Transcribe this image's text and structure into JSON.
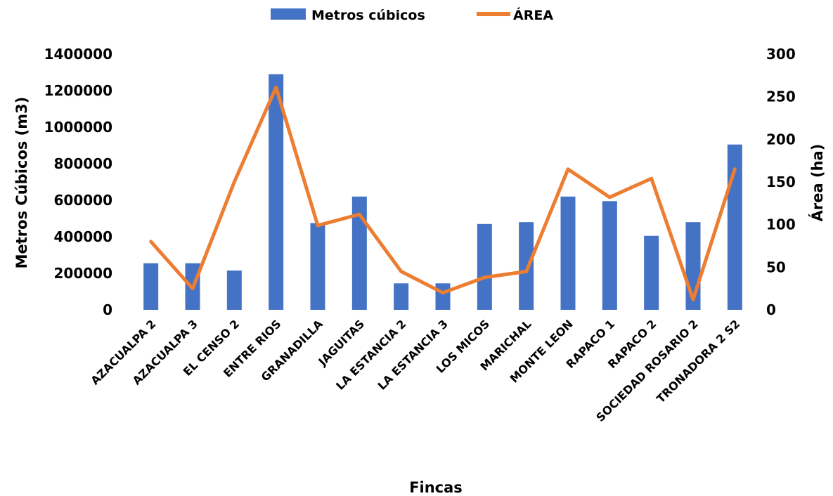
{
  "chart_data": {
    "type": "bar",
    "categories": [
      "AZACUALPA 2",
      "AZACUALPA 3",
      "EL CENSO 2",
      "ENTRE RIOS",
      "GRANADILLA",
      "JAGUITAS",
      "LA ESTANCIA 2",
      "LA ESTANCIA 3",
      "LOS MICOS",
      "MARICHAL",
      "MONTE LEON",
      "RAPACO 1",
      "RAPACO 2",
      "SOCIEDAD ROSARIO 2",
      "TRONADORA 2 S2"
    ],
    "series": [
      {
        "name": "Metros cúbicos",
        "type": "bar",
        "axis": "left",
        "color": "#4472C4",
        "values": [
          255000,
          255000,
          215000,
          1290000,
          475000,
          620000,
          145000,
          145000,
          470000,
          480000,
          620000,
          595000,
          405000,
          480000,
          905000
        ]
      },
      {
        "name": "ÁREA",
        "type": "line",
        "axis": "right",
        "color": "#ED7D31",
        "values": [
          80,
          25,
          150,
          261,
          99,
          112,
          45,
          20,
          38,
          45,
          165,
          132,
          154,
          12,
          165
        ]
      }
    ],
    "xlabel": "Fincas",
    "ylabel": "Metros Cúbicos (m3)",
    "ylabel_right": "Área (ha)",
    "ylim": [
      0,
      1400000
    ],
    "ylim_right": [
      0,
      300
    ],
    "yticks": [
      "0",
      "200000",
      "400000",
      "600000",
      "800000",
      "1000000",
      "1200000",
      "1400000"
    ],
    "yticks_right": [
      "0",
      "50",
      "100",
      "150",
      "200",
      "250",
      "300"
    ],
    "grid": false,
    "legend_position": "top-center"
  }
}
